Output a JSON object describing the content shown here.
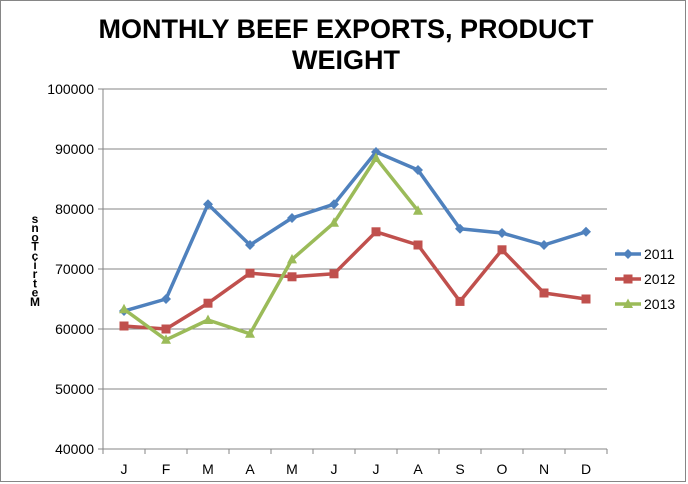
{
  "chart_data": {
    "type": "line",
    "title_lines": [
      "MONTHLY BEEF EXPORTS, PRODUCT",
      "WEIGHT"
    ],
    "ylabel": "Metric Tons",
    "ylabel_glyphs": [
      "s",
      "n",
      "o",
      "T",
      "c",
      "i",
      "r",
      "t",
      "e",
      "M"
    ],
    "categories": [
      "J",
      "F",
      "M",
      "A",
      "M",
      "J",
      "J",
      "A",
      "S",
      "O",
      "N",
      "D"
    ],
    "ylim": [
      40000,
      100000
    ],
    "yticks": [
      40000,
      50000,
      60000,
      70000,
      80000,
      90000,
      100000
    ],
    "ytick_labels": [
      "40000",
      "50000",
      "60000",
      "70000",
      "80000",
      "90000",
      "100000"
    ],
    "grid": "horizontal",
    "legend_position": "right",
    "series": [
      {
        "name": "2011",
        "color": "#4F81BD",
        "marker": "diamond",
        "values": [
          63000,
          65000,
          80800,
          74000,
          78500,
          80800,
          89500,
          86500,
          76700,
          76000,
          74000,
          76200
        ]
      },
      {
        "name": "2012",
        "color": "#C0504D",
        "marker": "square",
        "values": [
          60500,
          60000,
          64300,
          69300,
          68700,
          69200,
          76200,
          74000,
          64600,
          73200,
          66000,
          65000
        ]
      },
      {
        "name": "2013",
        "color": "#9BBB59",
        "marker": "triangle",
        "values": [
          63300,
          58200,
          61500,
          59200,
          71600,
          77700,
          88500,
          79700,
          null,
          null,
          null,
          null
        ]
      }
    ]
  }
}
